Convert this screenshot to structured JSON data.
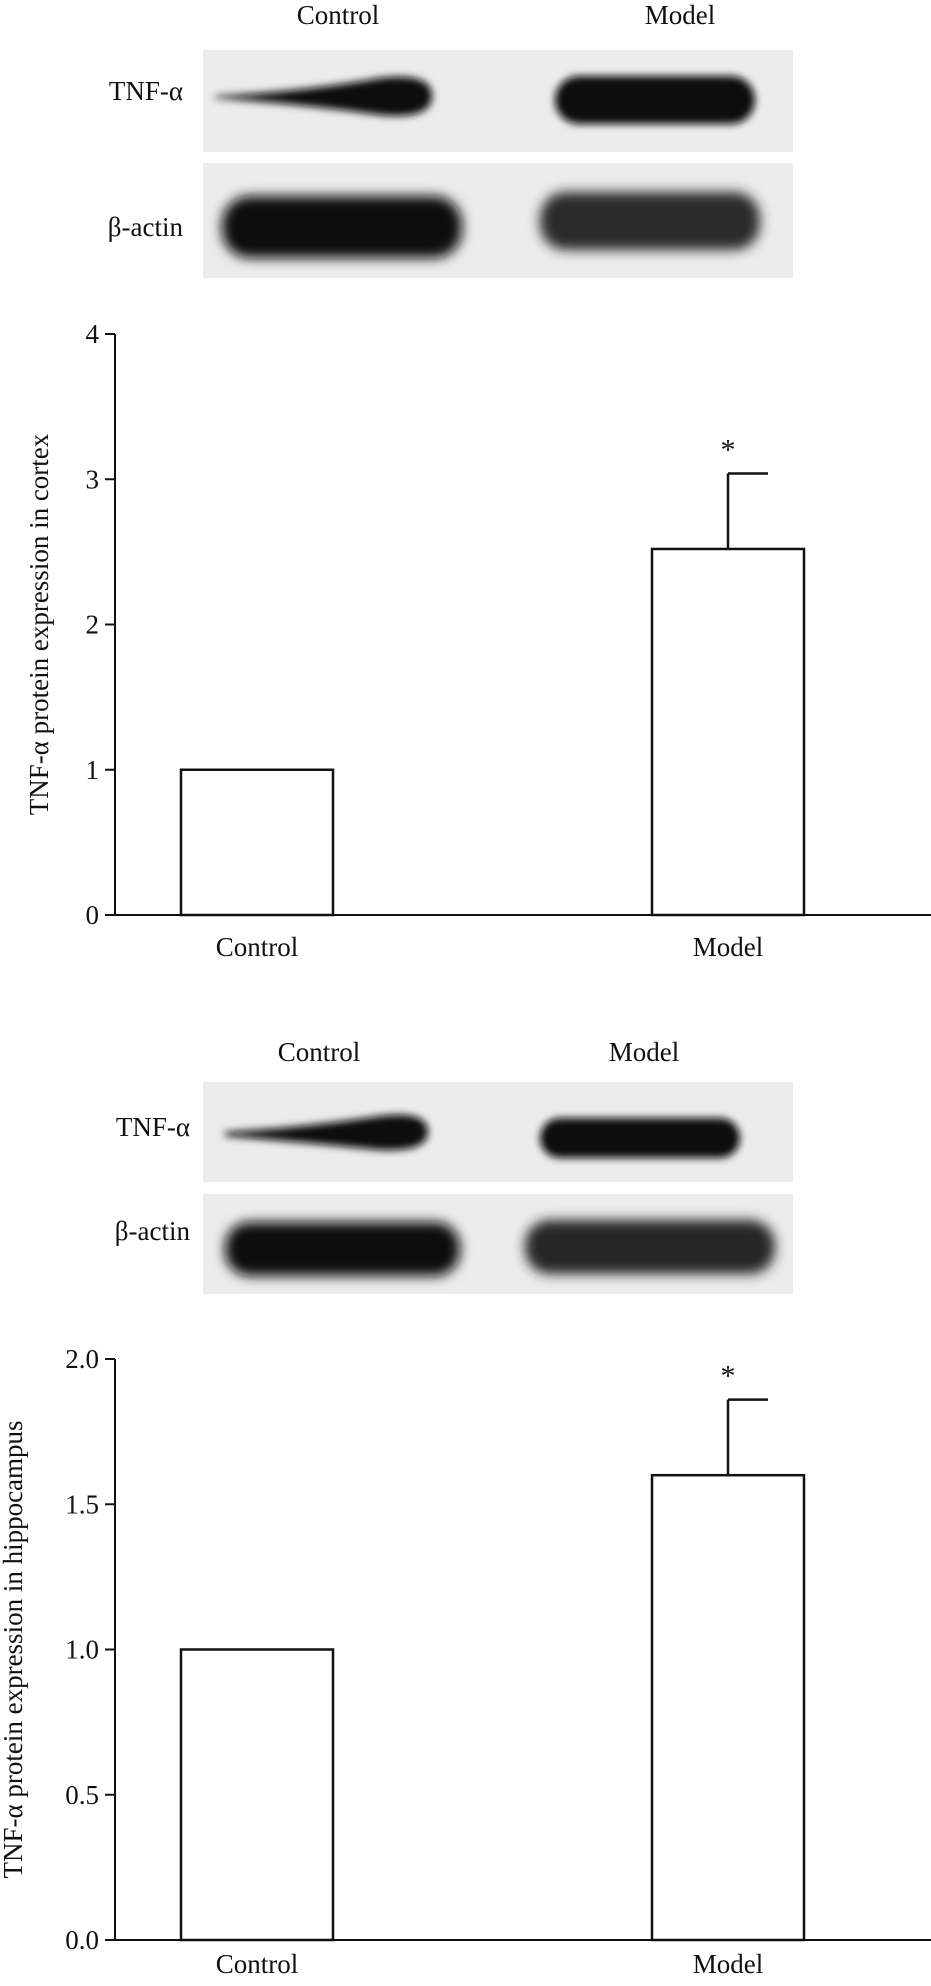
{
  "colors": {
    "axis": "#111111",
    "bar_fill": "#ffffff",
    "bar_stroke": "#111111",
    "blot_background": "#ececec",
    "band": "#0a0a0a"
  },
  "panels": [
    {
      "blot": {
        "lanes": [
          "Control",
          "Model"
        ],
        "bands": [
          {
            "label": "TNF-α",
            "intensity": [
              0.85,
              1.0
            ]
          },
          {
            "label": "β-actin",
            "intensity": [
              1.0,
              0.75
            ]
          }
        ]
      },
      "significance": [
        "",
        "*"
      ]
    },
    {
      "blot": {
        "lanes": [
          "Control",
          "Model"
        ],
        "bands": [
          {
            "label": "TNF-α",
            "intensity": [
              0.85,
              0.9
            ]
          },
          {
            "label": "β-actin",
            "intensity": [
              1.0,
              0.8
            ]
          }
        ]
      },
      "significance": [
        "",
        "*"
      ]
    }
  ],
  "chart_data": [
    {
      "type": "bar",
      "categories": [
        "Control",
        "Model"
      ],
      "values": [
        1.0,
        2.52
      ],
      "error_upper": [
        0,
        0.52
      ],
      "ylabel": "TNF-α protein expression in cortex",
      "ylim": [
        0,
        4
      ],
      "yticks": [
        "0",
        "1",
        "2",
        "3",
        "4"
      ],
      "ytick_values": [
        0,
        1,
        2,
        3,
        4
      ],
      "grid": false
    },
    {
      "type": "bar",
      "categories": [
        "Control",
        "Model"
      ],
      "values": [
        1.0,
        1.6
      ],
      "error_upper": [
        0,
        0.26
      ],
      "ylabel": "TNF-α protein expression in hippocampus",
      "ylim": [
        0,
        2.0
      ],
      "yticks": [
        "0.0",
        "0.5",
        "1.0",
        "1.5",
        "2.0"
      ],
      "ytick_values": [
        0,
        0.5,
        1.0,
        1.5,
        2.0
      ],
      "grid": false
    }
  ]
}
